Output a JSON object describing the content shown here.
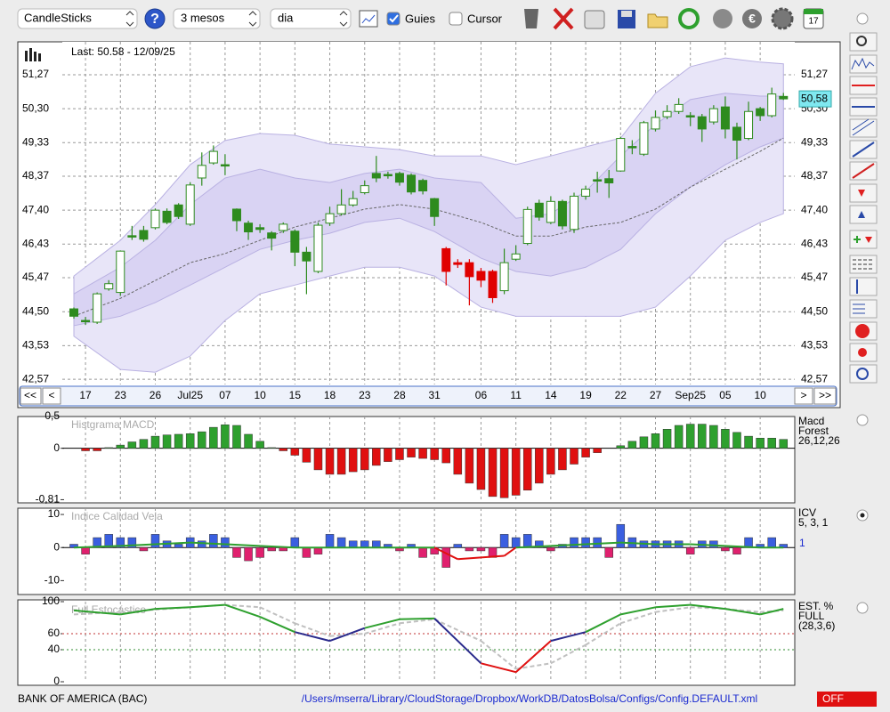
{
  "toolbar": {
    "chart_type": "CandleSticks",
    "help": "?",
    "period": "3 mesos",
    "interval": "dia",
    "guides": {
      "label": "Guies",
      "checked": true
    },
    "cursor": {
      "label": "Cursor",
      "checked": false
    },
    "calendar_day": "17"
  },
  "nav": {
    "first": "<<",
    "prev": "<",
    "next": ">",
    "last": ">>"
  },
  "chart_data": [
    {
      "type": "candlestick",
      "title": "Last: 50.58 - 12/09/25",
      "categories": [
        null,
        "17",
        null,
        null,
        "23",
        null,
        null,
        "26",
        null,
        null,
        "Jul25",
        null,
        null,
        "07",
        null,
        null,
        "10",
        null,
        null,
        "15",
        null,
        null,
        "18",
        null,
        null,
        "23",
        null,
        null,
        "28",
        null,
        null,
        "31",
        null,
        null,
        null,
        "06",
        null,
        null,
        "11",
        null,
        null,
        "14",
        null,
        null,
        "19",
        null,
        null,
        "22",
        null,
        null,
        "27",
        null,
        null,
        "Sep25",
        null,
        null,
        "05",
        null,
        null,
        "10",
        null,
        null
      ],
      "open": [
        44.58,
        44.25,
        44.2,
        45.15,
        45.05,
        46.67,
        46.82,
        46.9,
        47.37,
        47.55,
        47.0,
        48.32,
        48.75,
        48.7,
        47.43,
        47.03,
        46.9,
        46.75,
        46.82,
        46.8,
        46.2,
        45.65,
        47.03,
        47.3,
        47.55,
        47.9,
        48.45,
        48.42,
        48.45,
        48.4,
        48.25,
        47.73,
        46.3,
        45.9,
        45.9,
        45.65,
        45.65,
        45.1,
        46.0,
        46.45,
        47.6,
        47.05,
        47.65,
        46.85,
        47.8,
        48.27,
        48.3,
        48.52,
        49.22,
        49.0,
        49.72,
        50.07,
        50.22,
        50.1,
        50.07,
        49.92,
        50.35,
        49.77,
        49.45,
        50.3,
        50.1,
        50.65
      ],
      "high": [
        44.62,
        44.35,
        45.05,
        45.4,
        46.25,
        46.95,
        46.95,
        47.45,
        47.45,
        47.6,
        48.2,
        49.05,
        49.25,
        49.0,
        47.45,
        47.1,
        47.0,
        46.8,
        47.05,
        46.85,
        46.35,
        47.05,
        47.5,
        48.0,
        47.95,
        48.25,
        48.95,
        48.5,
        48.5,
        48.45,
        48.3,
        47.75,
        46.35,
        46.0,
        46.0,
        45.75,
        45.7,
        46.3,
        46.4,
        47.5,
        47.7,
        47.8,
        47.7,
        47.9,
        48.1,
        48.5,
        48.55,
        49.5,
        49.4,
        49.95,
        50.25,
        50.4,
        50.6,
        50.2,
        50.15,
        50.4,
        50.65,
        49.9,
        50.5,
        50.35,
        50.9,
        50.75
      ],
      "low": [
        44.3,
        44.12,
        44.15,
        45.1,
        44.95,
        46.55,
        46.5,
        46.85,
        47.0,
        47.15,
        46.95,
        48.1,
        48.7,
        48.4,
        46.8,
        46.55,
        46.75,
        46.25,
        46.75,
        45.8,
        45.0,
        45.6,
        46.95,
        47.25,
        47.5,
        47.85,
        48.2,
        48.3,
        48.1,
        47.85,
        47.85,
        46.95,
        45.25,
        45.75,
        44.68,
        45.2,
        44.75,
        45.0,
        45.95,
        46.4,
        47.1,
        47.0,
        46.85,
        46.75,
        47.7,
        47.9,
        47.75,
        48.5,
        49.0,
        48.95,
        49.65,
        50.0,
        50.15,
        49.8,
        49.35,
        49.85,
        49.45,
        48.85,
        49.4,
        49.95,
        50.05,
        50.55
      ],
      "close": [
        44.37,
        44.22,
        45.01,
        45.3,
        46.23,
        46.64,
        46.57,
        47.4,
        47.05,
        47.22,
        48.12,
        48.68,
        49.08,
        48.68,
        47.1,
        46.78,
        46.85,
        46.6,
        47.0,
        46.2,
        45.95,
        46.97,
        47.3,
        47.55,
        47.73,
        48.1,
        48.32,
        48.4,
        48.2,
        47.92,
        47.95,
        47.22,
        45.65,
        45.85,
        45.5,
        45.4,
        44.9,
        45.9,
        46.15,
        47.42,
        47.2,
        47.65,
        46.95,
        47.8,
        48.0,
        48.25,
        48.18,
        49.45,
        49.2,
        49.9,
        50.05,
        50.22,
        50.42,
        50.08,
        49.72,
        50.3,
        49.72,
        49.4,
        50.22,
        50.1,
        50.72,
        50.58
      ],
      "colors": [
        "#2e8b1e",
        "#2e8b1e",
        "#ffffff",
        "#ffffff",
        "#ffffff",
        "#2e8b1e",
        "#2e8b1e",
        "#ffffff",
        "#2e8b1e",
        "#2e8b1e",
        "#ffffff",
        "#ffffff",
        "#ffffff",
        "#2e8b1e",
        "#2e8b1e",
        "#2e8b1e",
        "#2e8b1e",
        "#2e8b1e",
        "#ffffff",
        "#2e8b1e",
        "#2e8b1e",
        "#ffffff",
        "#ffffff",
        "#ffffff",
        "#ffffff",
        "#ffffff",
        "#2e8b1e",
        "#2e8b1e",
        "#2e8b1e",
        "#2e8b1e",
        "#2e8b1e",
        "#2e8b1e",
        "#e00000",
        "#e00000",
        "#e00000",
        "#e00000",
        "#e00000",
        "#ffffff",
        "#ffffff",
        "#ffffff",
        "#2e8b1e",
        "#ffffff",
        "#2e8b1e",
        "#ffffff",
        "#ffffff",
        "#2e8b1e",
        "#2e8b1e",
        "#ffffff",
        "#2e8b1e",
        "#ffffff",
        "#ffffff",
        "#ffffff",
        "#ffffff",
        "#2e8b1e",
        "#2e8b1e",
        "#ffffff",
        "#2e8b1e",
        "#2e8b1e",
        "#ffffff",
        "#2e8b1e",
        "#ffffff",
        "#2e8b1e"
      ],
      "outline": "#2e8b1e",
      "bands": [
        {
          "x": [
            0,
            4,
            7,
            10,
            13,
            16,
            19,
            22,
            25,
            28,
            31,
            35,
            38,
            41,
            44,
            47,
            50,
            53,
            56,
            59,
            61
          ],
          "upper": [
            45.52,
            46.54,
            47.56,
            48.7,
            49.39,
            49.59,
            49.54,
            49.29,
            49.21,
            49.13,
            48.95,
            48.95,
            48.7,
            48.95,
            49.21,
            49.46,
            50.74,
            51.5,
            51.75,
            51.63,
            51.58
          ],
          "lower": [
            43.8,
            42.85,
            42.77,
            43.23,
            44.25,
            45.01,
            45.26,
            45.52,
            45.77,
            45.77,
            45.52,
            44.63,
            44.37,
            44.37,
            44.37,
            44.37,
            44.63,
            45.52,
            46.54,
            47.05,
            47.3
          ],
          "color": "#e8e5f8",
          "stroke": "#b9b1e2"
        },
        {
          "x": [
            0,
            4,
            7,
            10,
            13,
            16,
            19,
            22,
            25,
            28,
            31,
            35,
            38,
            41,
            44,
            47,
            50,
            53,
            56,
            59,
            61
          ],
          "upper": [
            45.01,
            45.77,
            46.54,
            47.56,
            48.32,
            48.57,
            48.32,
            48.19,
            48.45,
            48.57,
            48.32,
            48.19,
            47.17,
            47.3,
            47.94,
            48.95,
            49.85,
            50.56,
            50.74,
            50.66,
            50.66
          ],
          "lower": [
            44.1,
            44.37,
            44.76,
            45.26,
            45.77,
            46.28,
            46.54,
            46.74,
            47.05,
            47.17,
            46.79,
            46.03,
            45.65,
            45.52,
            45.77,
            46.28,
            47.3,
            48.06,
            48.7,
            49.21,
            49.46
          ],
          "color": "#d9d3f3",
          "stroke": "#b9b1e2"
        }
      ],
      "ma": {
        "x": [
          0,
          4,
          7,
          10,
          13,
          16,
          19,
          22,
          25,
          28,
          31,
          35,
          38,
          41,
          44,
          47,
          50,
          53,
          56,
          59,
          61
        ],
        "values": [
          44.37,
          44.88,
          45.39,
          45.9,
          46.16,
          46.54,
          46.92,
          47.17,
          47.43,
          47.56,
          47.43,
          47.05,
          46.66,
          46.66,
          46.92,
          47.05,
          47.43,
          48.06,
          48.57,
          49.08,
          49.46
        ],
        "color": "#666666"
      },
      "last_value": {
        "value": 50.58,
        "label": "50,58",
        "color": "#7fe8f0"
      },
      "ylim": [
        42.42,
        52.21
      ],
      "yticks": [
        {
          "value": 51.27,
          "label": "51,27"
        },
        {
          "value": 50.3,
          "label": "50,30"
        },
        {
          "value": 49.33,
          "label": "49,33"
        },
        {
          "value": 48.37,
          "label": "48,37"
        },
        {
          "value": 47.4,
          "label": "47,40"
        },
        {
          "value": 46.43,
          "label": "46,43"
        },
        {
          "value": 45.47,
          "label": "45,47"
        },
        {
          "value": 44.5,
          "label": "44,50"
        },
        {
          "value": 43.53,
          "label": "43,53"
        },
        {
          "value": 42.57,
          "label": "42,57"
        }
      ],
      "grid": true
    },
    {
      "type": "bar",
      "title": "Histgrama MACD",
      "legend": [
        "Macd",
        "Forest",
        "26,12,26"
      ],
      "values": [
        0,
        -0.04,
        -0.04,
        0.01,
        0.05,
        0.1,
        0.14,
        0.19,
        0.21,
        0.22,
        0.23,
        0.26,
        0.33,
        0.37,
        0.36,
        0.22,
        0.11,
        0.01,
        -0.04,
        -0.11,
        -0.22,
        -0.34,
        -0.41,
        -0.41,
        -0.37,
        -0.34,
        -0.27,
        -0.21,
        -0.18,
        -0.14,
        -0.16,
        -0.18,
        -0.23,
        -0.41,
        -0.55,
        -0.65,
        -0.76,
        -0.78,
        -0.74,
        -0.66,
        -0.55,
        -0.41,
        -0.34,
        -0.25,
        -0.14,
        -0.07,
        0,
        0.04,
        0.11,
        0.18,
        0.23,
        0.3,
        0.36,
        0.38,
        0.38,
        0.36,
        0.3,
        0.25,
        0.19,
        0.16,
        0.16,
        0.14
      ],
      "color": "#2ea02e",
      "negative_color": "#e01010",
      "ylim": [
        -0.86,
        0.5
      ],
      "yticks": [
        {
          "value": 0.5,
          "label": "0,5"
        },
        0,
        {
          "value": -0.81,
          "label": "-0,81"
        }
      ]
    },
    {
      "type": "bar_line",
      "title": "Indice Calidad Vela",
      "legend": [
        "ICV",
        "5, 3, 1"
      ],
      "legend_note": "1",
      "values": [
        1,
        -2,
        3,
        4,
        3,
        3,
        -1,
        4,
        2,
        1,
        3,
        2,
        4,
        3,
        -3,
        -4,
        -3,
        -1,
        -1,
        3,
        -3,
        -2,
        4,
        3,
        2,
        2,
        2,
        1,
        -1,
        1,
        -3,
        -2,
        -6,
        1,
        -1,
        -1,
        -3,
        4,
        3,
        4,
        2,
        -1,
        1,
        3,
        3,
        3,
        -3,
        7,
        3,
        2,
        2,
        2,
        2,
        -2,
        2,
        2,
        -1,
        -2,
        3,
        1,
        3,
        1
      ],
      "color": "#3a5fe0",
      "negative_color": "#e0206e",
      "line": {
        "x": [
          0,
          4,
          7,
          10,
          13,
          16,
          19,
          22,
          25,
          28,
          31,
          33,
          35,
          37,
          38,
          41,
          44,
          47,
          50,
          53,
          56,
          59,
          61
        ],
        "values": [
          0,
          0.5,
          1,
          1.5,
          1,
          0.5,
          0,
          0,
          0,
          0,
          0,
          -3.5,
          -3,
          -2.5,
          0,
          0.5,
          1,
          1.5,
          1,
          1,
          0.5,
          0,
          0
        ],
        "color": "#2ea02e",
        "negative_color": "#e01010"
      },
      "ylim": [
        -14.2,
        11.9
      ],
      "yticks": [
        10,
        0,
        -10
      ]
    },
    {
      "type": "line",
      "title": "Full Estocástico",
      "legend": [
        "EST. %",
        "FULL",
        "(28,3,6)"
      ],
      "series": [
        {
          "x": [
            0,
            4,
            7,
            10,
            13,
            16,
            19,
            22,
            25,
            28,
            31,
            35,
            38,
            41,
            44,
            47,
            50,
            53,
            56,
            59,
            61
          ],
          "values": [
            89,
            84,
            91,
            93,
            96,
            81,
            62,
            51,
            67,
            78,
            79,
            23,
            12,
            51,
            62,
            84,
            93,
            96,
            91,
            84,
            91
          ],
          "color": "#2ea02e",
          "mid_color": "#2a2a8c",
          "low_color": "#e01010"
        },
        {
          "x": [
            0,
            4,
            7,
            10,
            13,
            16,
            19,
            22,
            25,
            28,
            31,
            35,
            38,
            41,
            44,
            47,
            50,
            53,
            56,
            59,
            61
          ],
          "values": [
            84,
            87,
            90,
            93,
            96,
            93,
            73,
            57,
            60,
            73,
            78,
            51,
            16,
            23,
            46,
            73,
            87,
            93,
            91,
            87,
            89
          ],
          "color": "#c0c0c0",
          "dash": true
        }
      ],
      "levels": [
        {
          "value": 60,
          "color": "#c03030"
        },
        {
          "value": 40,
          "color": "#2e8b2e"
        }
      ],
      "ylim": [
        0,
        100
      ],
      "yticks": [
        100,
        60,
        40,
        0
      ]
    }
  ],
  "status": {
    "name": "BANK OF AMERICA (BAC)",
    "path": "/Users/mserra/Library/CloudStorage/Dropbox/WorkDB/DatosBolsa/Configs/Config.DEFAULT.xml",
    "state": "OFF"
  }
}
